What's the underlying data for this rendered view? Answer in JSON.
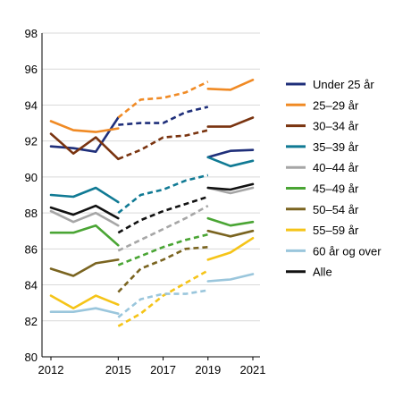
{
  "chart_data": {
    "type": "line",
    "title": "",
    "xlabel": "",
    "ylabel": "",
    "ylim": [
      80,
      98
    ],
    "yticks": [
      80,
      82,
      84,
      86,
      88,
      90,
      92,
      94,
      96,
      98
    ],
    "xlim": [
      2012,
      2021
    ],
    "xticks": [
      2012,
      2015,
      2017,
      2019,
      2021
    ],
    "grid": "horizontal",
    "legend_position": "right",
    "segments": [
      {
        "style": "solid",
        "x": [
          2012,
          2013,
          2014,
          2015
        ]
      },
      {
        "style": "dashed",
        "x": [
          2015,
          2016,
          2017,
          2018,
          2019
        ]
      },
      {
        "style": "solid",
        "x": [
          2019,
          2020,
          2021
        ]
      }
    ],
    "series": [
      {
        "name": "Under 25 år",
        "color": "#1f2f7a",
        "solid_a": [
          91.7,
          91.6,
          91.4,
          93.3
        ],
        "dashed": [
          92.9,
          93.0,
          93.0,
          93.6,
          93.9
        ],
        "solid_b": [
          91.1,
          91.45,
          91.5
        ]
      },
      {
        "name": "25–29 år",
        "color": "#f08a24",
        "solid_a": [
          93.1,
          92.6,
          92.5,
          92.7
        ],
        "dashed": [
          93.3,
          94.3,
          94.4,
          94.7,
          95.3
        ],
        "solid_b": [
          94.9,
          94.85,
          95.4
        ]
      },
      {
        "name": "30–34 år",
        "color": "#7a3410",
        "solid_a": [
          92.4,
          91.3,
          92.2,
          91.0
        ],
        "dashed": [
          91.0,
          91.5,
          92.2,
          92.3,
          92.6
        ],
        "solid_b": [
          92.8,
          92.8,
          93.3
        ]
      },
      {
        "name": "35–39 år",
        "color": "#107a94",
        "solid_a": [
          89.0,
          88.9,
          89.4,
          88.6
        ],
        "dashed": [
          88.0,
          89.0,
          89.3,
          89.8,
          90.1
        ],
        "solid_b": [
          91.1,
          90.6,
          90.9
        ]
      },
      {
        "name": "40–44 år",
        "color": "#a6a6a6",
        "solid_a": [
          88.1,
          87.5,
          88.0,
          87.3
        ],
        "dashed": [
          85.9,
          86.5,
          87.1,
          87.7,
          88.4
        ],
        "solid_b": [
          89.4,
          89.1,
          89.4
        ]
      },
      {
        "name": "45–49 år",
        "color": "#4aa534",
        "solid_a": [
          86.9,
          86.9,
          87.3,
          86.2
        ],
        "dashed": [
          85.1,
          85.6,
          86.1,
          86.5,
          86.8
        ],
        "solid_b": [
          87.7,
          87.3,
          87.5
        ]
      },
      {
        "name": "50–54 år",
        "color": "#7a6420",
        "solid_a": [
          84.9,
          84.5,
          85.2,
          85.4
        ],
        "dashed": [
          83.6,
          84.9,
          85.4,
          86.0,
          86.1
        ],
        "solid_b": [
          87.0,
          86.7,
          87.0
        ]
      },
      {
        "name": "55–59 år",
        "color": "#f5c418",
        "solid_a": [
          83.4,
          82.7,
          83.4,
          82.9
        ],
        "dashed": [
          81.7,
          82.4,
          83.4,
          84.1,
          84.8
        ],
        "solid_b": [
          85.4,
          85.8,
          86.6
        ]
      },
      {
        "name": "60 år og over",
        "color": "#9ac6dc",
        "solid_a": [
          82.5,
          82.5,
          82.7,
          82.4
        ],
        "dashed": [
          82.2,
          83.2,
          83.5,
          83.5,
          83.7
        ],
        "solid_b": [
          84.2,
          84.3,
          84.6
        ]
      },
      {
        "name": "Alle",
        "color": "#111111",
        "solid_a": [
          88.3,
          87.9,
          88.4,
          87.7
        ],
        "dashed": [
          86.9,
          87.6,
          88.1,
          88.5,
          88.9
        ],
        "solid_b": [
          89.4,
          89.3,
          89.6
        ]
      }
    ]
  }
}
